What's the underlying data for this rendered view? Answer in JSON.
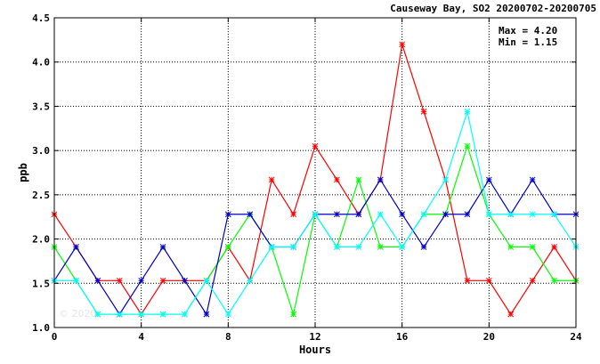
{
  "chart_data": {
    "type": "line",
    "title": "Causeway Bay, SO2 20200702-20200705",
    "xlabel": "Hours",
    "ylabel": "ppb",
    "xlim": [
      0,
      24
    ],
    "ylim": [
      1.0,
      4.5
    ],
    "xticks": [
      0,
      4,
      8,
      12,
      16,
      20,
      24
    ],
    "yticks": [
      1.0,
      1.5,
      2.0,
      2.5,
      3.0,
      3.5,
      4.0,
      4.5
    ],
    "grid": true,
    "max_label": "Max = 4.20",
    "min_label": "Min = 1.15",
    "watermark": "© 2020 ...",
    "x": [
      0,
      1,
      2,
      3,
      4,
      5,
      6,
      7,
      8,
      9,
      10,
      11,
      12,
      13,
      14,
      15,
      16,
      17,
      18,
      19,
      20,
      21,
      22,
      23,
      24
    ],
    "series": [
      {
        "color": "#ff0000",
        "values": [
          2.28,
          1.91,
          1.53,
          1.53,
          1.15,
          1.53,
          1.53,
          1.53,
          1.91,
          1.53,
          2.67,
          2.28,
          3.05,
          2.67,
          2.28,
          2.67,
          4.2,
          3.44,
          2.67,
          1.53,
          1.53,
          1.15,
          1.53,
          1.91,
          1.53
        ]
      },
      {
        "color": "#00ff00",
        "values": [
          1.91,
          1.53,
          1.15,
          1.15,
          1.15,
          1.15,
          1.15,
          1.53,
          1.91,
          2.28,
          1.91,
          1.15,
          2.28,
          1.91,
          2.67,
          1.91,
          1.91,
          2.28,
          2.28,
          3.05,
          2.28,
          1.91,
          1.91,
          1.53,
          1.53
        ]
      },
      {
        "color": "#0000cc",
        "values": [
          1.53,
          1.91,
          1.53,
          1.15,
          1.53,
          1.91,
          1.53,
          1.15,
          2.28,
          2.28,
          1.91,
          1.91,
          2.28,
          2.28,
          2.28,
          2.67,
          2.28,
          1.91,
          2.28,
          2.28,
          2.67,
          2.28,
          2.67,
          2.28,
          2.28
        ]
      },
      {
        "color": "#00ffff",
        "values": [
          1.53,
          1.53,
          1.15,
          1.15,
          1.15,
          1.15,
          1.15,
          1.53,
          1.15,
          1.53,
          1.91,
          1.91,
          2.28,
          1.91,
          1.91,
          2.28,
          1.91,
          2.28,
          2.67,
          3.44,
          2.28,
          2.28,
          2.28,
          2.28,
          1.91
        ]
      }
    ]
  }
}
